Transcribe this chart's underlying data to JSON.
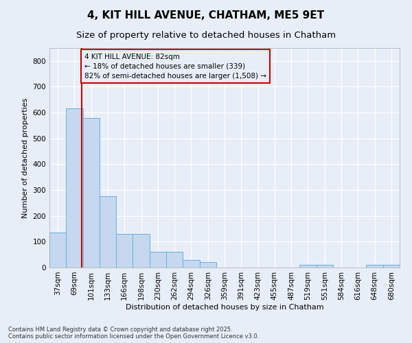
{
  "title": "4, KIT HILL AVENUE, CHATHAM, ME5 9ET",
  "subtitle": "Size of property relative to detached houses in Chatham",
  "xlabel": "Distribution of detached houses by size in Chatham",
  "ylabel": "Number of detached properties",
  "bins": [
    "37sqm",
    "69sqm",
    "101sqm",
    "133sqm",
    "166sqm",
    "198sqm",
    "230sqm",
    "262sqm",
    "294sqm",
    "326sqm",
    "359sqm",
    "391sqm",
    "423sqm",
    "455sqm",
    "487sqm",
    "519sqm",
    "551sqm",
    "584sqm",
    "616sqm",
    "648sqm",
    "680sqm"
  ],
  "bar_heights": [
    135,
    615,
    580,
    275,
    130,
    130,
    62,
    62,
    30,
    20,
    0,
    0,
    0,
    0,
    0,
    10,
    10,
    0,
    0,
    10,
    10
  ],
  "bar_color": "#c5d8ef",
  "bar_edge_color": "#6aaed6",
  "vline_x_index": 1.45,
  "vline_color": "#cc0000",
  "annotation_text": "4 KIT HILL AVENUE: 82sqm\n← 18% of detached houses are smaller (339)\n82% of semi-detached houses are larger (1,508) →",
  "annotation_box_color": "#cc0000",
  "ylim": [
    0,
    850
  ],
  "yticks": [
    0,
    100,
    200,
    300,
    400,
    500,
    600,
    700,
    800
  ],
  "bg_color": "#e8eef8",
  "grid_color": "#ffffff",
  "footer": "Contains HM Land Registry data © Crown copyright and database right 2025.\nContains public sector information licensed under the Open Government Licence v3.0.",
  "title_fontsize": 11,
  "subtitle_fontsize": 9.5,
  "annot_fontsize": 7.5,
  "axis_label_fontsize": 8,
  "tick_fontsize": 7.5
}
